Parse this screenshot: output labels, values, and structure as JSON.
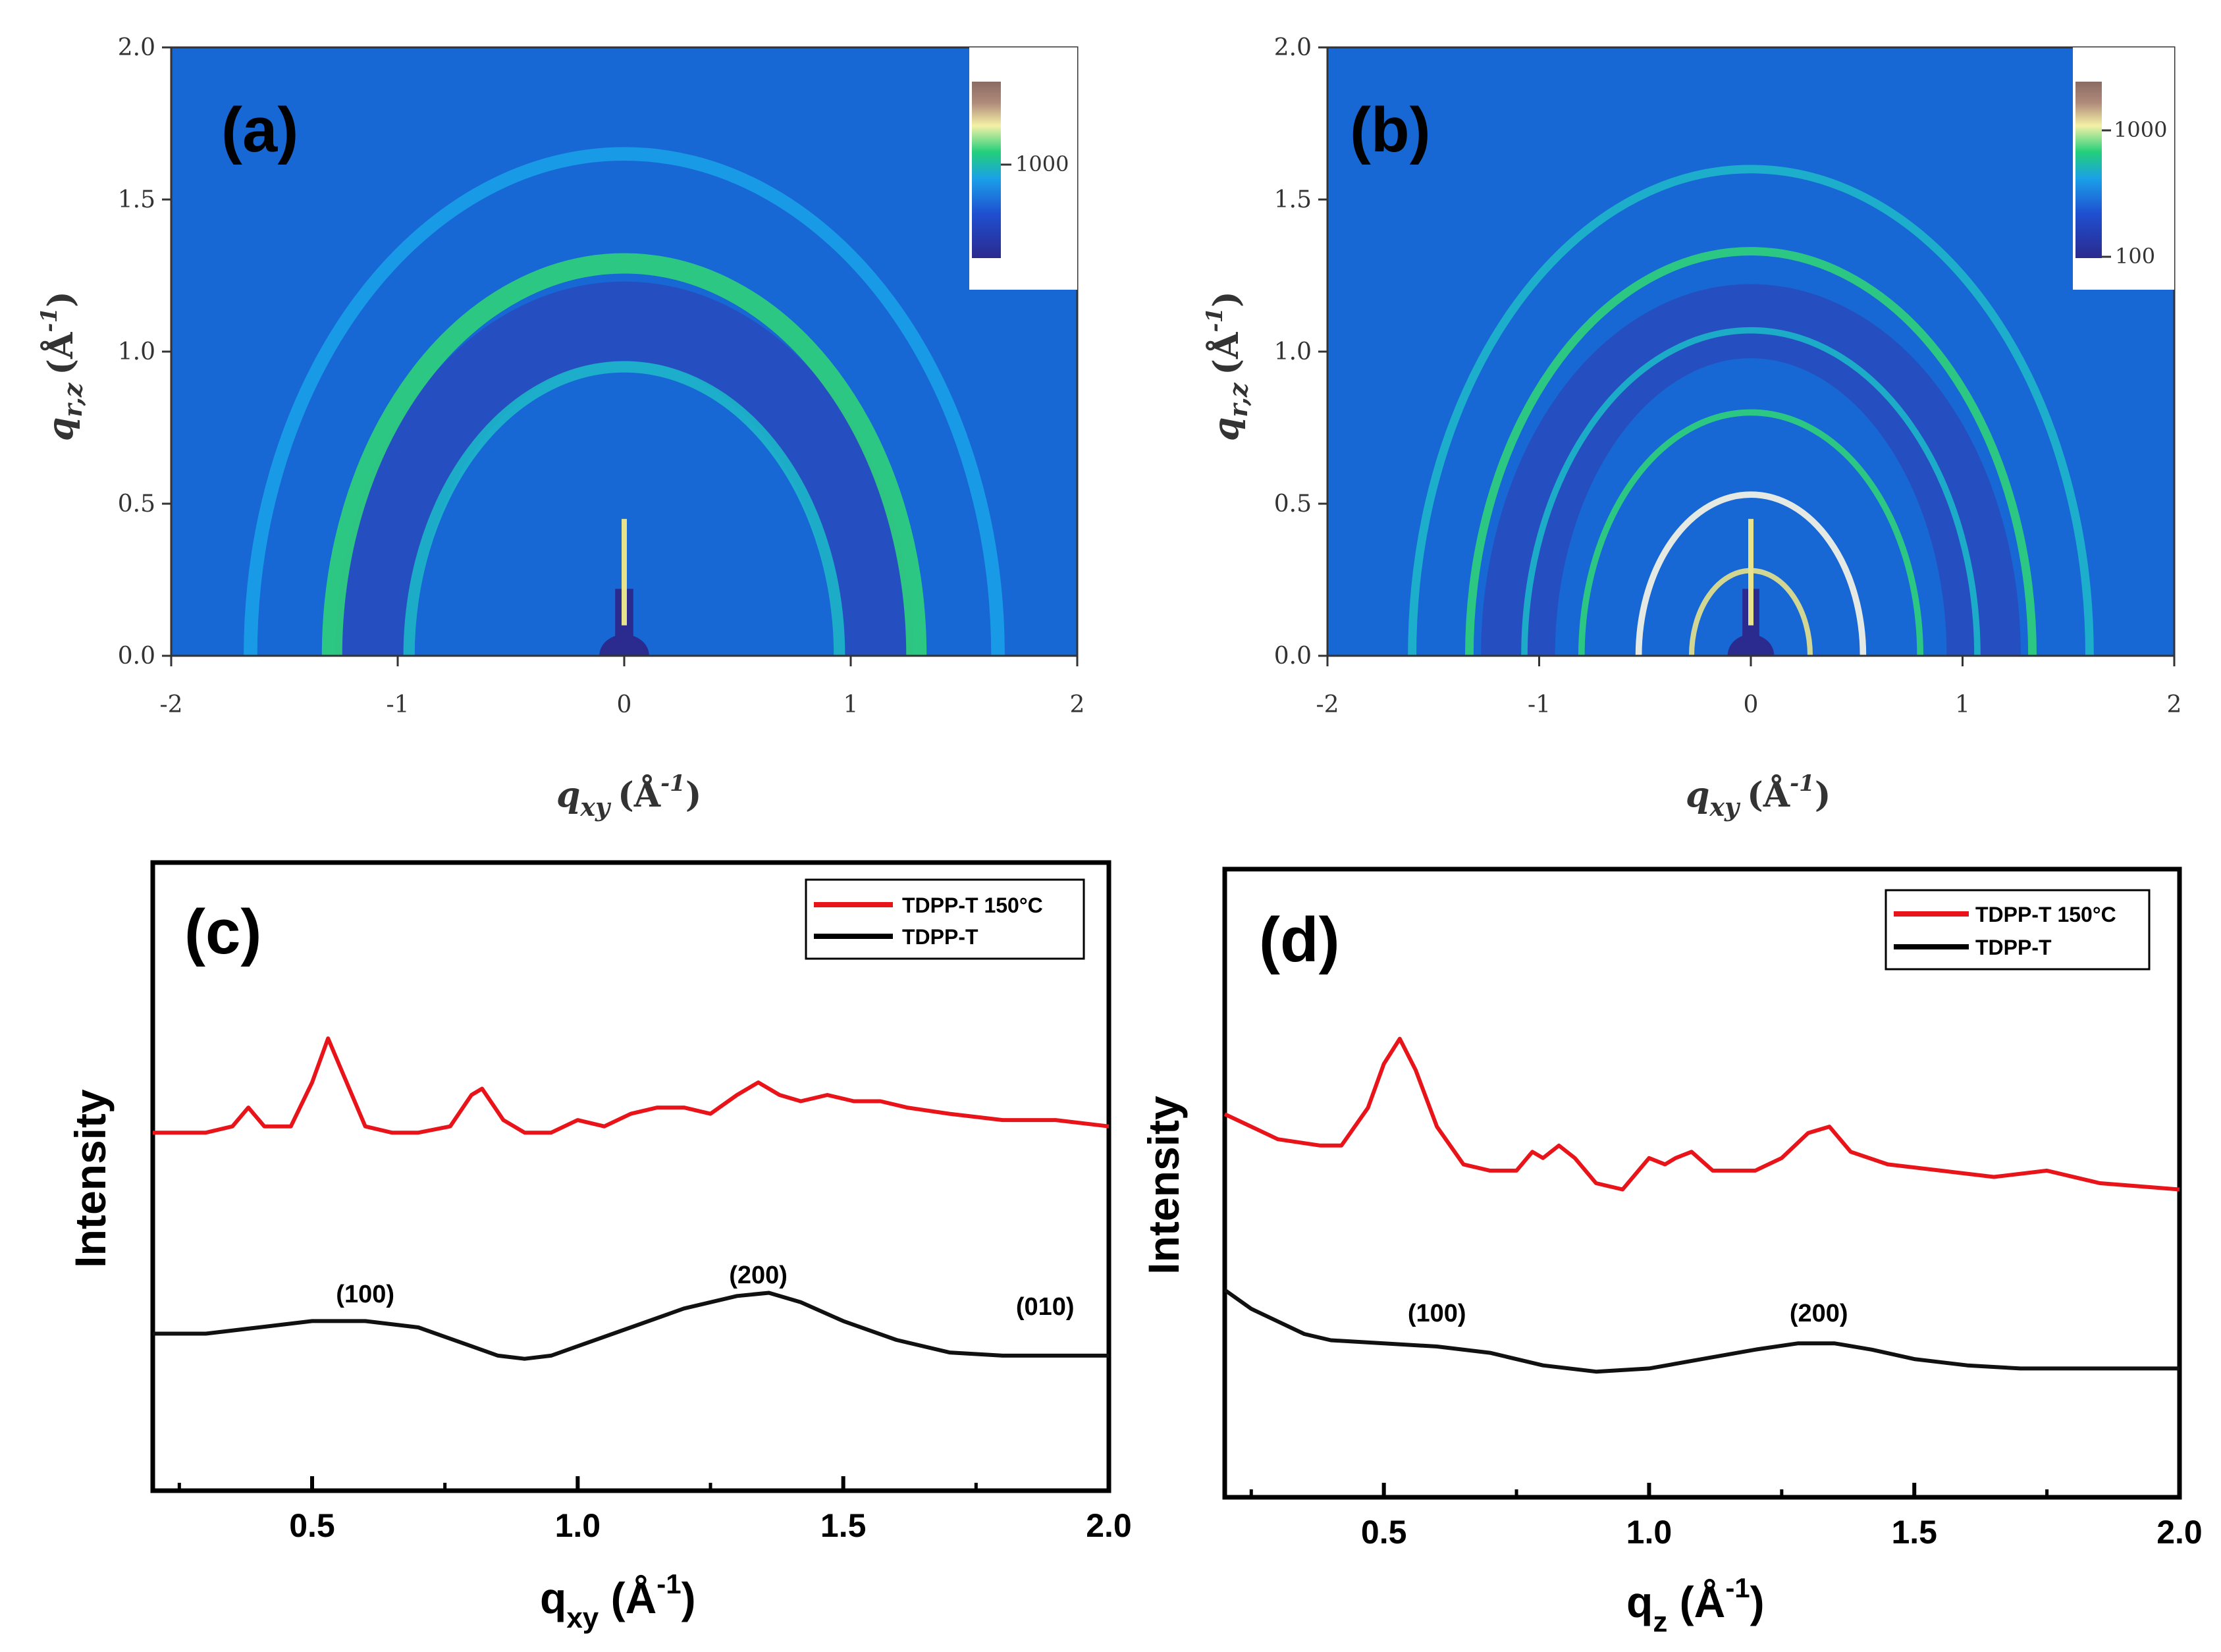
{
  "chart_data": [
    {
      "id": "a",
      "type": "heatmap",
      "panel_label": "(a)",
      "xlabel_main": "q",
      "xlabel_sub": "xy",
      "xlabel_unit": "(Å",
      "xlabel_exp": "-1",
      "xlabel_close": ")",
      "ylabel_main": "q",
      "ylabel_sub": "r,z",
      "ylabel_unit": "(Å",
      "ylabel_exp": "-1",
      "ylabel_close": ")",
      "x_ticks": [
        "-2",
        "-1",
        "0",
        "1",
        "2"
      ],
      "y_ticks": [
        "0.0",
        "0.5",
        "1.0",
        "1.5",
        "2.0"
      ],
      "xlim": [
        -2,
        2
      ],
      "ylim": [
        0,
        2
      ],
      "colorbar_ticks": [
        "1000"
      ],
      "rings": [
        {
          "q": 0.95,
          "width": 0.05,
          "intensity": 0.35
        },
        {
          "q": 1.29,
          "width": 0.09,
          "intensity": 0.75
        },
        {
          "q": 1.65,
          "width": 0.06,
          "intensity": 0.3
        }
      ]
    },
    {
      "id": "b",
      "type": "heatmap",
      "panel_label": "(b)",
      "xlabel_main": "q",
      "xlabel_sub": "xy",
      "xlabel_unit": "(Å",
      "xlabel_exp": "-1",
      "xlabel_close": ")",
      "ylabel_main": "q",
      "ylabel_sub": "r,z",
      "ylabel_unit": "(Å",
      "ylabel_exp": "-1",
      "ylabel_close": ")",
      "x_ticks": [
        "-2",
        "-1",
        "0",
        "1",
        "2"
      ],
      "y_ticks": [
        "0.0",
        "0.5",
        "1.0",
        "1.5",
        "2.0"
      ],
      "xlim": [
        -2,
        2
      ],
      "ylim": [
        0,
        2
      ],
      "colorbar_ticks": [
        "1000",
        "100"
      ],
      "rings": [
        {
          "q": 0.28,
          "width": 0.025,
          "intensity": 0.8
        },
        {
          "q": 0.53,
          "width": 0.03,
          "intensity": 0.95
        },
        {
          "q": 0.8,
          "width": 0.03,
          "intensity": 0.7
        },
        {
          "q": 1.07,
          "width": 0.03,
          "intensity": 0.5
        },
        {
          "q": 1.33,
          "width": 0.04,
          "intensity": 0.6
        },
        {
          "q": 1.6,
          "width": 0.04,
          "intensity": 0.45
        }
      ]
    },
    {
      "id": "c",
      "type": "line",
      "panel_label": "(c)",
      "ylabel": "Intensity",
      "xlabel_main": "q",
      "xlabel_sub": "xy",
      "xlabel_unit": " (Å",
      "xlabel_exp": "-1",
      "xlabel_close": ")",
      "x_ticks": [
        "0.5",
        "1.0",
        "1.5",
        "2.0"
      ],
      "xlim": [
        0.2,
        2.0
      ],
      "ylim": [
        0,
        10
      ],
      "legend": [
        "TDPP-T 150°C",
        "TDPP-T"
      ],
      "annotations": [
        {
          "text": "(100)",
          "x": 0.6,
          "y": 3.0
        },
        {
          "text": "(200)",
          "x": 1.34,
          "y": 3.3
        },
        {
          "text": "(010)",
          "x": 1.88,
          "y": 2.8
        }
      ],
      "series": [
        {
          "name": "TDPP-T 150°C",
          "color": "#e8141a",
          "x": [
            0.2,
            0.3,
            0.35,
            0.38,
            0.41,
            0.46,
            0.5,
            0.53,
            0.56,
            0.6,
            0.65,
            0.7,
            0.76,
            0.8,
            0.82,
            0.86,
            0.9,
            0.95,
            1.0,
            1.05,
            1.1,
            1.15,
            1.2,
            1.25,
            1.3,
            1.34,
            1.38,
            1.42,
            1.47,
            1.52,
            1.57,
            1.62,
            1.7,
            1.8,
            1.9,
            2.0
          ],
          "values": [
            5.7,
            5.7,
            5.8,
            6.1,
            5.8,
            5.8,
            6.5,
            7.2,
            6.6,
            5.8,
            5.7,
            5.7,
            5.8,
            6.3,
            6.4,
            5.9,
            5.7,
            5.7,
            5.9,
            5.8,
            6.0,
            6.1,
            6.1,
            6.0,
            6.3,
            6.5,
            6.3,
            6.2,
            6.3,
            6.2,
            6.2,
            6.1,
            6.0,
            5.9,
            5.9,
            5.8
          ]
        },
        {
          "name": "TDPP-T",
          "color": "#111111",
          "x": [
            0.2,
            0.3,
            0.4,
            0.5,
            0.6,
            0.7,
            0.8,
            0.85,
            0.9,
            0.95,
            1.0,
            1.1,
            1.2,
            1.3,
            1.36,
            1.42,
            1.5,
            1.6,
            1.7,
            1.8,
            1.9,
            2.0
          ],
          "values": [
            2.5,
            2.5,
            2.6,
            2.7,
            2.7,
            2.6,
            2.3,
            2.15,
            2.1,
            2.15,
            2.3,
            2.6,
            2.9,
            3.1,
            3.15,
            3.0,
            2.7,
            2.4,
            2.2,
            2.15,
            2.15,
            2.15
          ]
        }
      ]
    },
    {
      "id": "d",
      "type": "line",
      "panel_label": "(d)",
      "ylabel": "Intensity",
      "xlabel_main": "q",
      "xlabel_sub": "z",
      "xlabel_unit": " (Å",
      "xlabel_exp": "-1",
      "xlabel_close": ")",
      "x_ticks": [
        "0.5",
        "1.0",
        "1.5",
        "2.0"
      ],
      "xlim": [
        0.2,
        2.0
      ],
      "ylim": [
        0,
        10
      ],
      "legend": [
        "TDPP-T 150°C",
        "TDPP-T"
      ],
      "annotations": [
        {
          "text": "(100)",
          "x": 0.6,
          "y": 2.8
        },
        {
          "text": "(200)",
          "x": 1.32,
          "y": 2.8
        }
      ],
      "series": [
        {
          "name": "TDPP-T 150°C",
          "color": "#e8141a",
          "x": [
            0.2,
            0.25,
            0.3,
            0.38,
            0.42,
            0.47,
            0.5,
            0.53,
            0.56,
            0.6,
            0.65,
            0.7,
            0.75,
            0.78,
            0.8,
            0.83,
            0.86,
            0.9,
            0.95,
            1.0,
            1.03,
            1.05,
            1.08,
            1.12,
            1.2,
            1.25,
            1.3,
            1.34,
            1.38,
            1.45,
            1.55,
            1.65,
            1.75,
            1.85,
            2.0
          ],
          "values": [
            6.1,
            5.9,
            5.7,
            5.6,
            5.6,
            6.2,
            6.9,
            7.3,
            6.8,
            5.9,
            5.3,
            5.2,
            5.2,
            5.5,
            5.4,
            5.6,
            5.4,
            5.0,
            4.9,
            5.4,
            5.3,
            5.4,
            5.5,
            5.2,
            5.2,
            5.4,
            5.8,
            5.9,
            5.5,
            5.3,
            5.2,
            5.1,
            5.2,
            5.0,
            4.9
          ]
        },
        {
          "name": "TDPP-T",
          "color": "#111111",
          "x": [
            0.2,
            0.25,
            0.3,
            0.35,
            0.4,
            0.5,
            0.6,
            0.7,
            0.8,
            0.9,
            1.0,
            1.1,
            1.2,
            1.28,
            1.35,
            1.42,
            1.5,
            1.6,
            1.7,
            1.8,
            1.9,
            2.0
          ],
          "values": [
            3.3,
            3.0,
            2.8,
            2.6,
            2.5,
            2.45,
            2.4,
            2.3,
            2.1,
            2.0,
            2.05,
            2.2,
            2.35,
            2.45,
            2.45,
            2.35,
            2.2,
            2.1,
            2.05,
            2.05,
            2.05,
            2.05
          ]
        }
      ]
    }
  ]
}
